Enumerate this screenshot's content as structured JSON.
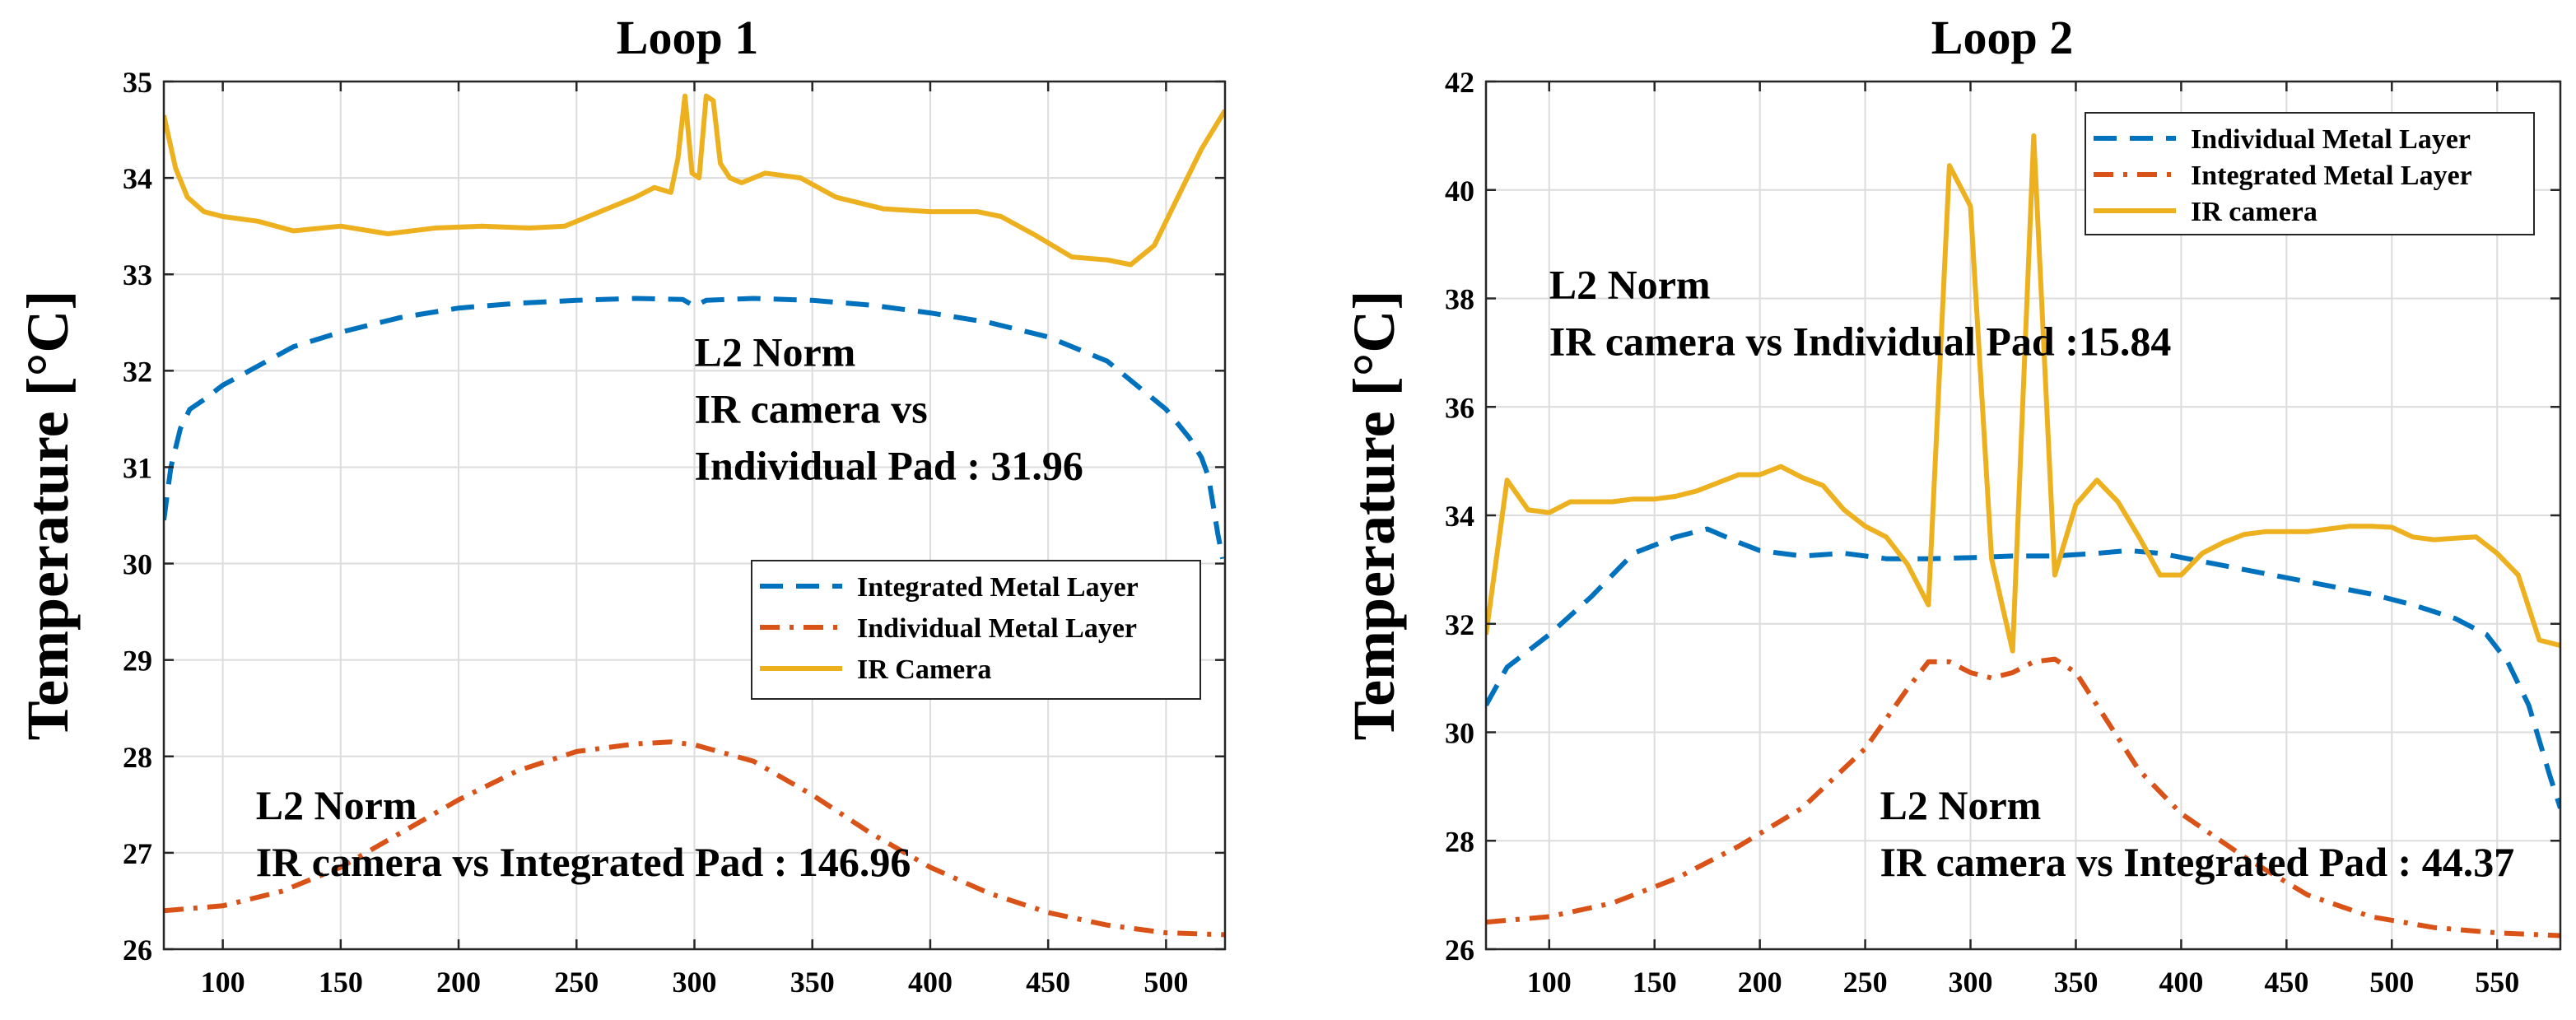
{
  "colors": {
    "blue": "#0072BD",
    "orange": "#D95319",
    "yellow": "#EDB120"
  },
  "chart_data": [
    {
      "type": "line",
      "title": "Loop 1",
      "ylabel": "Temperature [°C]",
      "xlabel": "",
      "xlim": [
        75,
        525
      ],
      "ylim": [
        26,
        35
      ],
      "xticks": [
        100,
        150,
        200,
        250,
        300,
        350,
        400,
        450,
        500
      ],
      "yticks": [
        26,
        27,
        28,
        29,
        30,
        31,
        32,
        33,
        34,
        35
      ],
      "annotations": [
        {
          "lines": [
            "L2 Norm",
            "IR camera vs",
            "Individual Pad : 31.96"
          ],
          "x": 300,
          "y": 32.05
        },
        {
          "lines": [
            "L2 Norm",
            "IR camera vs Integrated Pad : 146.96"
          ],
          "x": 114,
          "y": 27.35
        }
      ],
      "legend": [
        "Integrated Metal Layer",
        "Individual Metal Layer",
        "IR Camera"
      ],
      "series": [
        {
          "name": "Integrated Metal Layer",
          "color": "blue",
          "style": "dashed",
          "x": [
            75,
            78,
            82,
            86,
            92,
            100,
            115,
            130,
            150,
            175,
            200,
            225,
            250,
            275,
            295,
            300,
            305,
            325,
            350,
            375,
            400,
            425,
            450,
            475,
            490,
            500,
            505,
            510,
            515,
            518,
            520,
            522,
            524
          ],
          "y": [
            30.45,
            31.0,
            31.4,
            31.6,
            31.7,
            31.85,
            32.05,
            32.25,
            32.4,
            32.55,
            32.65,
            32.7,
            32.73,
            32.75,
            32.74,
            32.67,
            32.73,
            32.75,
            32.73,
            32.68,
            32.6,
            32.5,
            32.35,
            32.1,
            31.8,
            31.6,
            31.45,
            31.3,
            31.1,
            30.9,
            30.6,
            30.3,
            30.05
          ]
        },
        {
          "name": "Individual Metal Layer",
          "color": "orange",
          "style": "dashdot",
          "x": [
            75,
            100,
            125,
            150,
            175,
            200,
            225,
            250,
            275,
            290,
            300,
            325,
            350,
            375,
            400,
            425,
            450,
            475,
            500,
            525
          ],
          "y": [
            26.4,
            26.45,
            26.6,
            26.85,
            27.2,
            27.55,
            27.85,
            28.05,
            28.13,
            28.15,
            28.12,
            27.95,
            27.6,
            27.2,
            26.85,
            26.58,
            26.38,
            26.25,
            26.17,
            26.15
          ]
        },
        {
          "name": "IR Camera",
          "color": "yellow",
          "style": "solid",
          "x": [
            75,
            80,
            85,
            92,
            100,
            115,
            130,
            150,
            170,
            190,
            210,
            230,
            245,
            260,
            275,
            283,
            290,
            293,
            296,
            299,
            302,
            305,
            308,
            311,
            315,
            320,
            330,
            345,
            360,
            380,
            400,
            420,
            430,
            445,
            460,
            475,
            485,
            495,
            505,
            515,
            525
          ],
          "y": [
            34.65,
            34.1,
            33.8,
            33.65,
            33.6,
            33.55,
            33.45,
            33.5,
            33.42,
            33.48,
            33.5,
            33.48,
            33.5,
            33.65,
            33.8,
            33.9,
            33.85,
            34.2,
            34.85,
            34.05,
            34.0,
            34.85,
            34.8,
            34.15,
            34.0,
            33.95,
            34.05,
            34.0,
            33.8,
            33.68,
            33.65,
            33.65,
            33.6,
            33.4,
            33.18,
            33.15,
            33.1,
            33.3,
            33.8,
            34.3,
            34.7
          ]
        }
      ]
    },
    {
      "type": "line",
      "title": "Loop 2",
      "ylabel": "Temperature [°C]",
      "xlabel": "",
      "xlim": [
        70,
        580
      ],
      "ylim": [
        26,
        42
      ],
      "xticks": [
        100,
        150,
        200,
        250,
        300,
        350,
        400,
        450,
        500,
        550
      ],
      "yticks": [
        26,
        28,
        30,
        32,
        34,
        36,
        38,
        40,
        42
      ],
      "annotations": [
        {
          "lines": [
            "L2 Norm",
            "IR camera vs Individual Pad :15.84"
          ],
          "x": 100,
          "y": 38.0
        },
        {
          "lines": [
            "L2 Norm",
            "IR camera vs Integrated Pad : 44.37"
          ],
          "x": 257,
          "y": 28.4
        }
      ],
      "legend": [
        "Individual Metal Layer",
        "Integrated Metal Layer",
        "IR camera"
      ],
      "series": [
        {
          "name": "Individual Metal Layer",
          "color": "blue",
          "style": "dashed",
          "x": [
            70,
            80,
            100,
            120,
            140,
            160,
            175,
            190,
            200,
            220,
            240,
            260,
            280,
            300,
            320,
            340,
            360,
            375,
            390,
            410,
            430,
            450,
            470,
            490,
            510,
            530,
            545,
            555,
            565,
            575,
            580
          ],
          "y": [
            30.5,
            31.2,
            31.8,
            32.5,
            33.3,
            33.6,
            33.75,
            33.5,
            33.35,
            33.25,
            33.3,
            33.2,
            33.2,
            33.22,
            33.25,
            33.25,
            33.3,
            33.35,
            33.3,
            33.15,
            33.0,
            32.85,
            32.7,
            32.55,
            32.35,
            32.1,
            31.8,
            31.3,
            30.5,
            29.2,
            28.6
          ]
        },
        {
          "name": "Integrated Metal Layer",
          "color": "orange",
          "style": "dashdot",
          "x": [
            70,
            100,
            130,
            160,
            190,
            220,
            250,
            270,
            280,
            290,
            300,
            310,
            320,
            330,
            340,
            350,
            360,
            380,
            400,
            430,
            460,
            490,
            520,
            550,
            580
          ],
          "y": [
            26.5,
            26.6,
            26.85,
            27.3,
            27.9,
            28.6,
            29.7,
            30.8,
            31.3,
            31.3,
            31.1,
            31.0,
            31.1,
            31.3,
            31.35,
            31.1,
            30.5,
            29.3,
            28.5,
            27.7,
            27.0,
            26.6,
            26.4,
            26.3,
            26.25
          ]
        },
        {
          "name": "IR camera",
          "color": "yellow",
          "style": "solid",
          "x": [
            70,
            80,
            90,
            100,
            110,
            120,
            130,
            140,
            150,
            160,
            170,
            180,
            190,
            200,
            210,
            220,
            230,
            240,
            250,
            260,
            270,
            280,
            290,
            300,
            310,
            320,
            330,
            340,
            350,
            360,
            370,
            380,
            390,
            400,
            410,
            420,
            430,
            440,
            460,
            480,
            490,
            500,
            510,
            520,
            530,
            540,
            550,
            560,
            570,
            580
          ],
          "y": [
            31.8,
            34.65,
            34.1,
            34.05,
            34.25,
            34.25,
            34.25,
            34.3,
            34.3,
            34.35,
            34.45,
            34.6,
            34.75,
            34.75,
            34.9,
            34.7,
            34.55,
            34.1,
            33.8,
            33.6,
            33.1,
            32.35,
            40.45,
            39.7,
            33.2,
            31.5,
            41.0,
            32.9,
            34.2,
            34.65,
            34.25,
            33.6,
            32.9,
            32.9,
            33.3,
            33.5,
            33.65,
            33.7,
            33.7,
            33.8,
            33.8,
            33.78,
            33.6,
            33.55,
            33.58,
            33.6,
            33.3,
            32.9,
            31.7,
            31.6
          ]
        }
      ]
    }
  ]
}
